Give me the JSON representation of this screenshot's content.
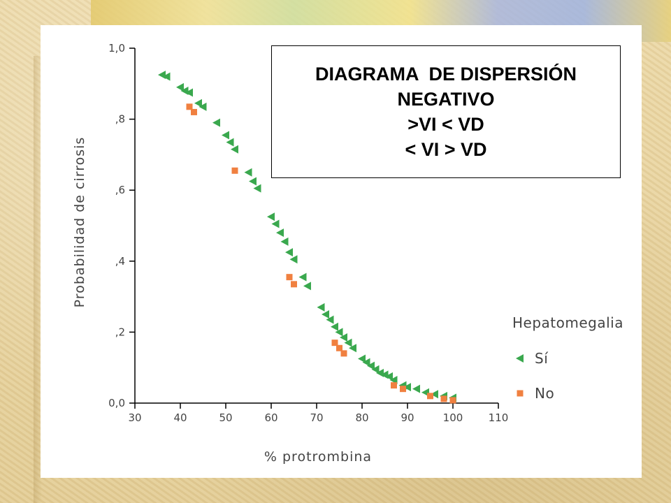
{
  "chart_data": {
    "type": "scatter",
    "title_lines": [
      "DIAGRAMA  DE DISPERSIÓN",
      "NEGATIVO",
      ">VI < VD",
      "< VI > VD"
    ],
    "xlabel": "% protrombina",
    "ylabel": "Probabilidad de cirrosis",
    "xlim": [
      30,
      110
    ],
    "ylim": [
      0.0,
      1.0
    ],
    "x_ticks": [
      30,
      40,
      50,
      60,
      70,
      80,
      90,
      100,
      110
    ],
    "x_tick_labels": [
      "30",
      "40",
      "50",
      "60",
      "70",
      "80",
      "90",
      "100",
      "110"
    ],
    "y_ticks": [
      0.0,
      0.2,
      0.4,
      0.6,
      0.8,
      1.0
    ],
    "y_tick_labels": [
      "0,0",
      ",2",
      ",4",
      ",6",
      ",8",
      "1,0"
    ],
    "legend_title": "Hepatomegalia",
    "legend_position": "right",
    "grid": false,
    "series": [
      {
        "name": "Sí",
        "marker": "triangle-left",
        "color": "#3aa84e",
        "points": [
          [
            36,
            0.925
          ],
          [
            37,
            0.92
          ],
          [
            40,
            0.89
          ],
          [
            41,
            0.88
          ],
          [
            42,
            0.875
          ],
          [
            44,
            0.845
          ],
          [
            45,
            0.835
          ],
          [
            48,
            0.79
          ],
          [
            50,
            0.755
          ],
          [
            51,
            0.735
          ],
          [
            52,
            0.715
          ],
          [
            55,
            0.65
          ],
          [
            56,
            0.625
          ],
          [
            57,
            0.605
          ],
          [
            60,
            0.525
          ],
          [
            61,
            0.505
          ],
          [
            62,
            0.48
          ],
          [
            63,
            0.455
          ],
          [
            64,
            0.425
          ],
          [
            65,
            0.405
          ],
          [
            67,
            0.355
          ],
          [
            68,
            0.33
          ],
          [
            71,
            0.27
          ],
          [
            72,
            0.25
          ],
          [
            73,
            0.235
          ],
          [
            74,
            0.215
          ],
          [
            75,
            0.2
          ],
          [
            76,
            0.185
          ],
          [
            77,
            0.17
          ],
          [
            78,
            0.155
          ],
          [
            80,
            0.125
          ],
          [
            81,
            0.115
          ],
          [
            82,
            0.105
          ],
          [
            83,
            0.095
          ],
          [
            84,
            0.085
          ],
          [
            85,
            0.08
          ],
          [
            86,
            0.075
          ],
          [
            87,
            0.065
          ],
          [
            89,
            0.05
          ],
          [
            90,
            0.045
          ],
          [
            92,
            0.04
          ],
          [
            94,
            0.03
          ],
          [
            96,
            0.025
          ],
          [
            98,
            0.02
          ],
          [
            100,
            0.015
          ]
        ]
      },
      {
        "name": "No",
        "marker": "square",
        "color": "#f08040",
        "points": [
          [
            42,
            0.835
          ],
          [
            43,
            0.82
          ],
          [
            52,
            0.655
          ],
          [
            64,
            0.355
          ],
          [
            65,
            0.335
          ],
          [
            74,
            0.17
          ],
          [
            75,
            0.155
          ],
          [
            76,
            0.14
          ],
          [
            87,
            0.05
          ],
          [
            89,
            0.04
          ],
          [
            95,
            0.02
          ],
          [
            98,
            0.012
          ],
          [
            100,
            0.008
          ]
        ]
      }
    ]
  }
}
